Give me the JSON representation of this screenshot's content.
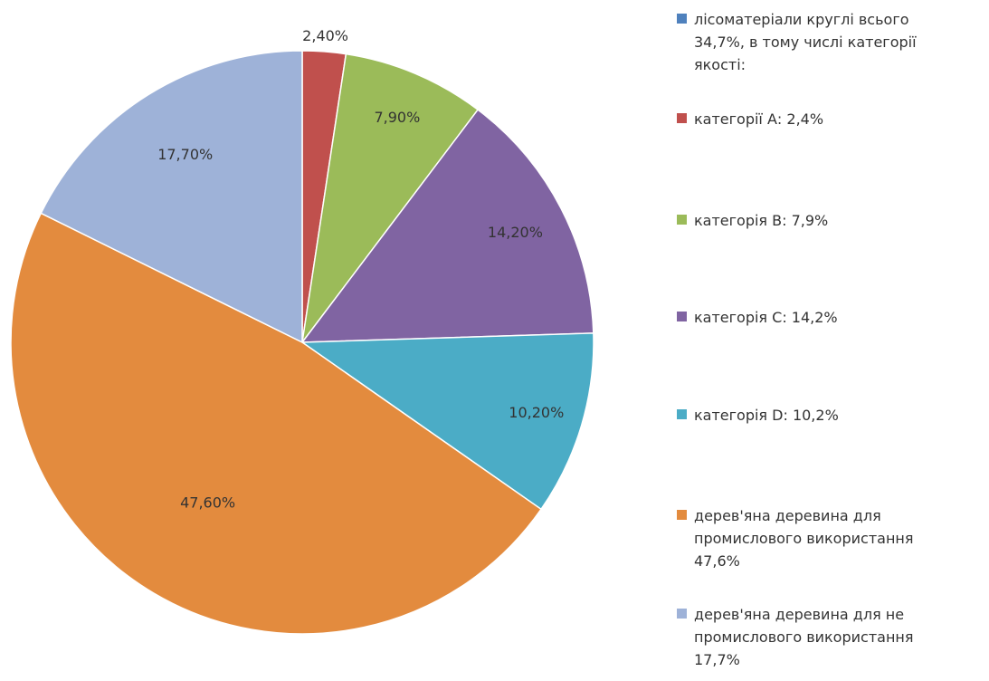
{
  "chart_data": {
    "type": "pie",
    "slices": [
      {
        "label": "категорії А: 2,4%",
        "value": 2.4,
        "data_label": "2,40%",
        "color": "#c0504d"
      },
      {
        "label": "категорія В: 7,9%",
        "value": 7.9,
        "data_label": "7,90%",
        "color": "#9bbb59"
      },
      {
        "label": "категорія С: 14,2%",
        "value": 14.2,
        "data_label": "14,20%",
        "color": "#8064a2"
      },
      {
        "label": "категорія D: 10,2%",
        "value": 10.2,
        "data_label": "10,20%",
        "color": "#4bacc6"
      },
      {
        "label": "дерев'яна деревина для\nпромислового використання\n47,6%",
        "value": 47.6,
        "data_label": "47,60%",
        "color": "#e38b3e"
      },
      {
        "label": "дерев'яна деревина для  не\nпромислового використання\n17,7%",
        "value": 17.7,
        "data_label": "17,70%",
        "color": "#9eb2d8"
      }
    ],
    "legend": [
      {
        "label": "лісоматеріали круглі всього\n34,7%, в тому числі категорії\nякості:",
        "color": "#4f81bd"
      },
      {
        "label": "категорії А: 2,4%",
        "color": "#c0504d"
      },
      {
        "label": "категорія В: 7,9%",
        "color": "#9bbb59"
      },
      {
        "label": "категорія С: 14,2%",
        "color": "#8064a2"
      },
      {
        "label": "категорія D: 10,2%",
        "color": "#4bacc6"
      },
      {
        "label": "дерев'яна деревина для\nпромислового використання\n47,6%",
        "color": "#e38b3e"
      },
      {
        "label": "дерев'яна деревина для  не\nпромислового використання\n17,7%",
        "color": "#9eb2d8"
      }
    ],
    "legend_position": "right"
  }
}
